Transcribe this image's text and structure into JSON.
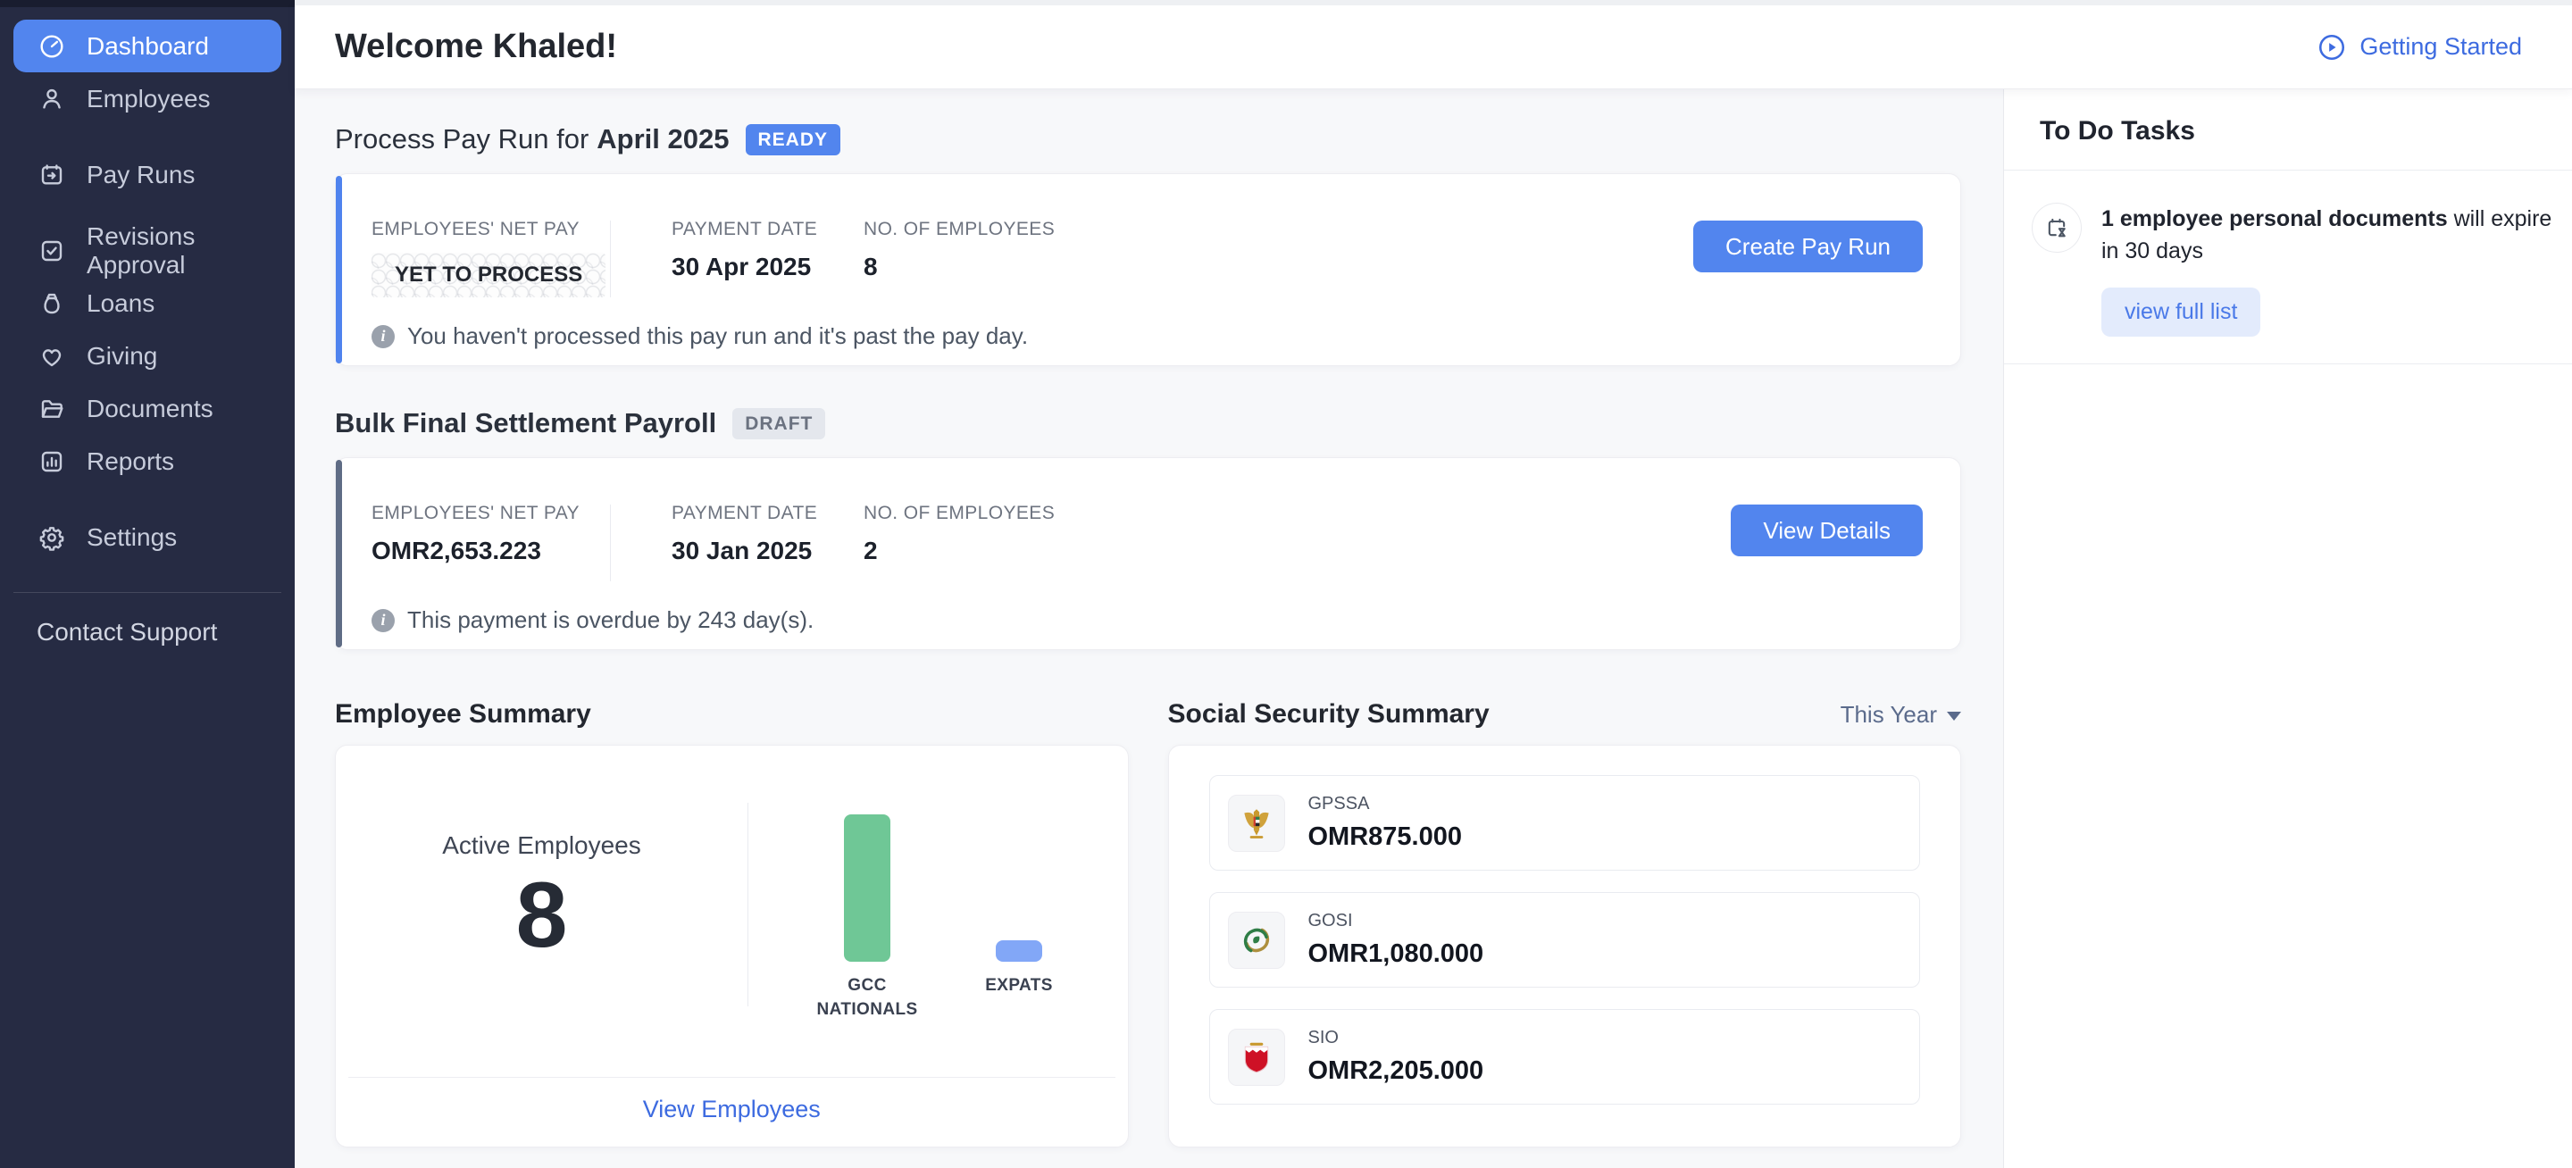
{
  "sidebar": {
    "items": [
      {
        "label": "Dashboard",
        "icon": "dashboard-gauge-icon",
        "active": true
      },
      {
        "label": "Employees",
        "icon": "employees-person-icon"
      },
      {
        "label": "Pay Runs",
        "icon": "pay-runs-calendar-icon"
      },
      {
        "label": "Revisions Approval",
        "icon": "revisions-check-square-icon"
      },
      {
        "label": "Loans",
        "icon": "loans-money-bag-icon"
      },
      {
        "label": "Giving",
        "icon": "giving-heart-icon"
      },
      {
        "label": "Documents",
        "icon": "documents-folder-icon"
      },
      {
        "label": "Reports",
        "icon": "reports-bar-chart-icon"
      },
      {
        "label": "Settings",
        "icon": "settings-gear-icon"
      }
    ],
    "support_label": "Contact Support"
  },
  "header": {
    "title": "Welcome Khaled!",
    "getting_started": "Getting Started"
  },
  "pay_run": {
    "title_prefix": "Process Pay Run for",
    "title_period": "April 2025",
    "status_badge": "READY",
    "net_pay_label": "EMPLOYEES' NET PAY",
    "net_pay_value": "YET TO PROCESS",
    "payment_date_label": "PAYMENT DATE",
    "payment_date_value": "30 Apr 2025",
    "employees_label": "NO. OF EMPLOYEES",
    "employees_value": "8",
    "info": "You haven't processed this pay run and it's past the pay day.",
    "button": "Create Pay Run"
  },
  "settlement": {
    "title": "Bulk Final Settlement Payroll",
    "status_badge": "DRAFT",
    "net_pay_label": "EMPLOYEES' NET PAY",
    "net_pay_value": "OMR2,653.223",
    "payment_date_label": "PAYMENT DATE",
    "payment_date_value": "30 Jan 2025",
    "employees_label": "NO. OF EMPLOYEES",
    "employees_value": "2",
    "info": "This payment is overdue by 243 day(s).",
    "button": "View Details"
  },
  "employee_summary": {
    "title": "Employee Summary",
    "active_label": "Active Employees",
    "active_count": "8",
    "link": "View Employees"
  },
  "chart_data": {
    "type": "bar",
    "categories": [
      "GCC NATIONALS",
      "EXPATS"
    ],
    "values": [
      7,
      1
    ],
    "title": "Employee Summary",
    "xlabel": "",
    "ylabel": "",
    "ylim": [
      0,
      7
    ],
    "grid": false,
    "legend": false,
    "colors": [
      "#6fc796",
      "#82a7f7"
    ]
  },
  "social_security": {
    "title": "Social Security Summary",
    "filter": "This Year",
    "rows": [
      {
        "name": "GPSSA",
        "amount": "OMR875.000",
        "icon": "uae-emblem-icon"
      },
      {
        "name": "GOSI",
        "amount": "OMR1,080.000",
        "icon": "gosi-emblem-icon"
      },
      {
        "name": "SIO",
        "amount": "OMR2,205.000",
        "icon": "bahrain-emblem-icon"
      }
    ]
  },
  "todo": {
    "title": "To Do Tasks",
    "task_bold": "1 employee personal documents",
    "task_rest": " will expire in 30 days",
    "link": "view full list"
  },
  "colors": {
    "accent_blue": "#5285ee",
    "link_blue": "#3d6be0",
    "sidebar_bg": "#262b43",
    "slate_accent": "#5f6c85",
    "green_bar": "#6fc796",
    "blue_bar": "#82a7f7"
  }
}
